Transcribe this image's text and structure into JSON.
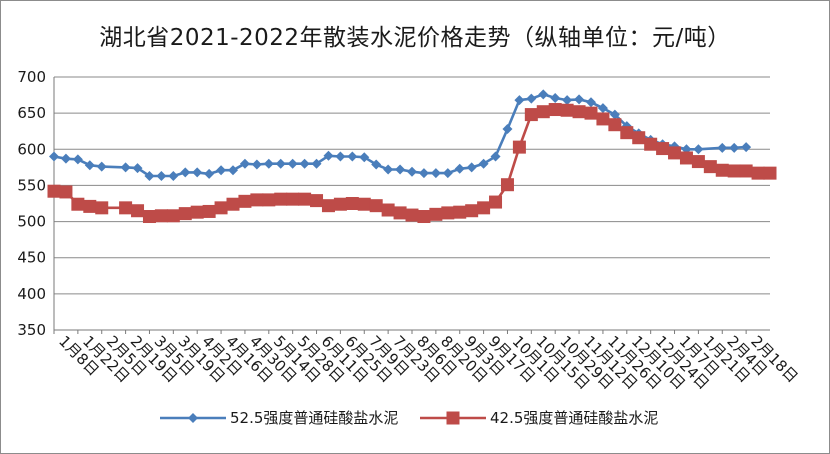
{
  "chart_data": {
    "type": "line",
    "title": "湖北省2021-2022年散装水泥价格走势（纵轴单位：元/吨）",
    "xlabel": "",
    "ylabel": "",
    "ylim": [
      350,
      700
    ],
    "yticks": [
      350,
      400,
      450,
      500,
      550,
      600,
      650,
      700
    ],
    "grid": "horizontal",
    "legend": "bottom",
    "x": [
      "1月8日",
      "1月22日",
      "2月5日",
      "2月19日",
      "3月5日",
      "3月19日",
      "4月2日",
      "4月16日",
      "4月30日",
      "5月14日",
      "5月28日",
      "6月11日",
      "6月25日",
      "7月9日",
      "7月23日",
      "8月6日",
      "8月20日",
      "9月3日",
      "9月17日",
      "10月1日",
      "10月15日",
      "10月29日",
      "11月12日",
      "11月26日",
      "12月10日",
      "12月24日",
      "1月7日",
      "1月21日",
      "2月4日",
      "2月18日"
    ],
    "series": [
      {
        "name": "52.5强度普通硅酸盐水泥",
        "color": "#4a7ebb",
        "marker": "diamond",
        "points": [
          [
            0.0,
            590
          ],
          [
            1.0,
            587
          ],
          [
            2.0,
            586
          ],
          [
            3.0,
            578
          ],
          [
            4.0,
            576
          ],
          [
            6.0,
            575
          ],
          [
            7.0,
            574
          ],
          [
            8.0,
            563
          ],
          [
            9.0,
            563
          ],
          [
            10.0,
            563
          ],
          [
            11.0,
            568
          ],
          [
            12.0,
            568
          ],
          [
            13.0,
            566
          ],
          [
            14.0,
            571
          ],
          [
            15.0,
            571
          ],
          [
            16.0,
            580
          ],
          [
            17.0,
            579
          ],
          [
            18.0,
            580
          ],
          [
            19.0,
            580
          ],
          [
            20.0,
            580
          ],
          [
            21.0,
            580
          ],
          [
            22.0,
            580
          ],
          [
            23.0,
            591
          ],
          [
            24.0,
            590
          ],
          [
            25.0,
            590
          ],
          [
            26.0,
            589
          ],
          [
            27.0,
            579
          ],
          [
            28.0,
            572
          ],
          [
            29.0,
            572
          ],
          [
            30.0,
            569
          ],
          [
            31.0,
            567
          ],
          [
            32.0,
            567
          ],
          [
            33.0,
            567
          ],
          [
            34.0,
            573
          ],
          [
            35.0,
            575
          ],
          [
            36.0,
            580
          ],
          [
            37.0,
            590
          ],
          [
            38.0,
            628
          ],
          [
            39.0,
            668
          ],
          [
            40.0,
            670
          ],
          [
            41.0,
            676
          ],
          [
            42.0,
            671
          ],
          [
            43.0,
            668
          ],
          [
            44.0,
            669
          ],
          [
            45.0,
            665
          ],
          [
            46.0,
            657
          ],
          [
            47.0,
            648
          ],
          [
            48.0,
            632
          ],
          [
            49.0,
            622
          ],
          [
            50.0,
            613
          ],
          [
            51.0,
            607
          ],
          [
            52.0,
            604
          ],
          [
            53.0,
            600
          ],
          [
            54.0,
            600
          ],
          [
            56.0,
            602
          ],
          [
            57.0,
            602
          ],
          [
            58.0,
            603
          ]
        ]
      },
      {
        "name": "42.5强度普通硅酸盐水泥",
        "color": "#be4b48",
        "marker": "square",
        "points": [
          [
            0.0,
            542
          ],
          [
            1.0,
            541
          ],
          [
            2.0,
            524
          ],
          [
            3.0,
            521
          ],
          [
            4.0,
            519
          ],
          [
            6.0,
            519
          ],
          [
            7.0,
            515
          ],
          [
            8.0,
            507
          ],
          [
            9.0,
            508
          ],
          [
            10.0,
            508
          ],
          [
            11.0,
            511
          ],
          [
            12.0,
            513
          ],
          [
            13.0,
            514
          ],
          [
            14.0,
            519
          ],
          [
            15.0,
            524
          ],
          [
            16.0,
            528
          ],
          [
            17.0,
            530
          ],
          [
            18.0,
            530
          ],
          [
            19.0,
            531
          ],
          [
            20.0,
            531
          ],
          [
            21.0,
            531
          ],
          [
            22.0,
            529
          ],
          [
            23.0,
            522
          ],
          [
            24.0,
            524
          ],
          [
            25.0,
            525
          ],
          [
            26.0,
            524
          ],
          [
            27.0,
            522
          ],
          [
            28.0,
            516
          ],
          [
            29.0,
            512
          ],
          [
            30.0,
            509
          ],
          [
            31.0,
            507
          ],
          [
            32.0,
            510
          ],
          [
            33.0,
            512
          ],
          [
            34.0,
            513
          ],
          [
            35.0,
            515
          ],
          [
            36.0,
            519
          ],
          [
            37.0,
            527
          ],
          [
            38.0,
            551
          ],
          [
            39.0,
            603
          ],
          [
            40.0,
            648
          ],
          [
            41.0,
            652
          ],
          [
            42.0,
            655
          ],
          [
            43.0,
            654
          ],
          [
            44.0,
            652
          ],
          [
            45.0,
            650
          ],
          [
            46.0,
            642
          ],
          [
            47.0,
            634
          ],
          [
            48.0,
            623
          ],
          [
            49.0,
            616
          ],
          [
            50.0,
            607
          ],
          [
            51.0,
            601
          ],
          [
            52.0,
            595
          ],
          [
            53.0,
            588
          ],
          [
            54.0,
            583
          ],
          [
            55.0,
            576
          ],
          [
            56.0,
            571
          ],
          [
            57.0,
            570
          ],
          [
            58.0,
            570
          ],
          [
            59.0,
            567
          ],
          [
            60.0,
            567
          ]
        ]
      }
    ]
  }
}
